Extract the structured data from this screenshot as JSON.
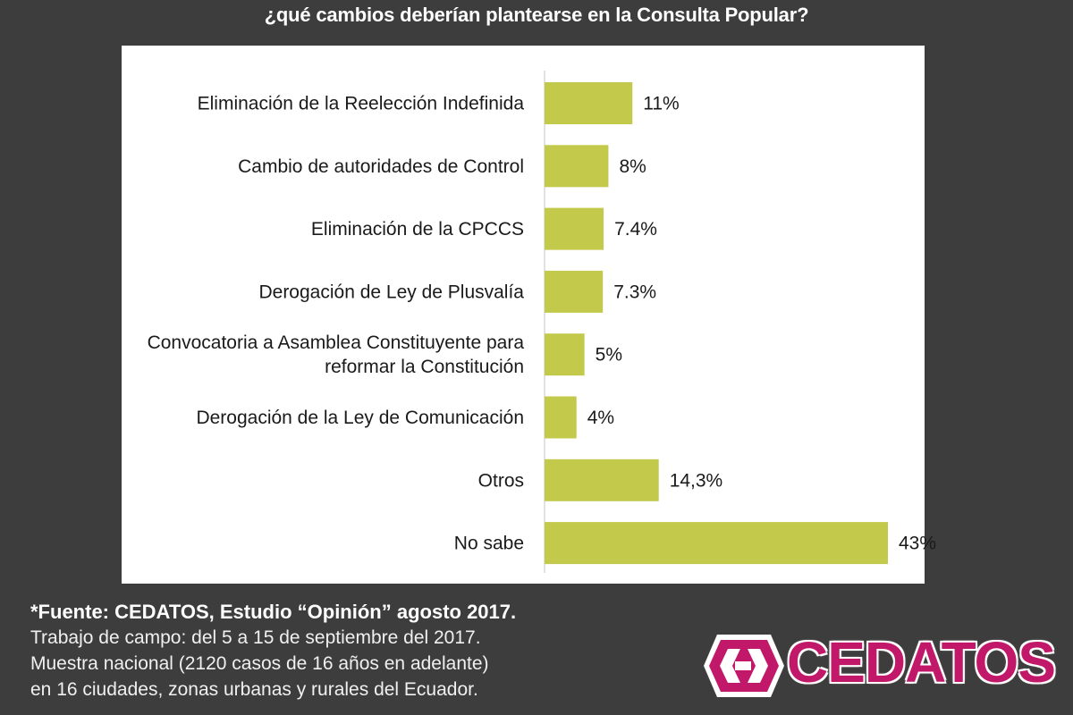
{
  "title": "¿qué cambios deberían plantearse en la Consulta Popular?",
  "chart_data": {
    "type": "bar",
    "orientation": "horizontal",
    "categories": [
      [
        "Eliminación de la Reelección Indefinida"
      ],
      [
        "Cambio de autoridades de Control"
      ],
      [
        "Eliminación de la CPCCS"
      ],
      [
        "Derogación de Ley de Plusvalía"
      ],
      [
        "Convocatoria a Asamblea Constituyente para",
        "reformar la Constitución"
      ],
      [
        "Derogación de la Ley de Comunicación"
      ],
      [
        "Otros"
      ],
      [
        "No sabe"
      ]
    ],
    "values": [
      11,
      8,
      7.4,
      7.3,
      5,
      4,
      14.3,
      43
    ],
    "value_labels": [
      "11%",
      "8%",
      "7.4%",
      "7.3%",
      "5%",
      "4%",
      "14,3%",
      "43%"
    ],
    "xlim": [
      0,
      43
    ],
    "bar_color": "#c3c94a",
    "axis_color": "#d9d9d9",
    "grid": false,
    "legend": "none"
  },
  "footer": {
    "source": "*Fuente: CEDATOS, Estudio “Opinión” agosto 2017.",
    "line1": "Trabajo de campo: del 5 a 15 de septiembre del 2017.",
    "line2": "Muestra nacional (2120 casos de 16 años en adelante)",
    "line3": "en 16 ciudades, zonas urbanas y rurales del Ecuador."
  },
  "logo": {
    "text": "CEDATOS",
    "icon": "cedatos-arrows-logo-icon",
    "color": "#c2186a"
  }
}
